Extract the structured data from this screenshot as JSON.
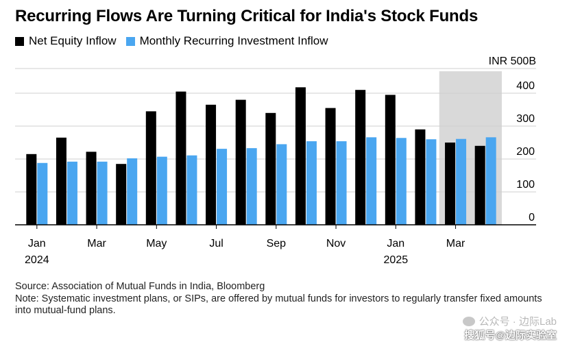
{
  "title": "Recurring Flows Are Turning Critical for India's Stock Funds",
  "legend": [
    {
      "label": "Net Equity Inflow",
      "color": "#000000"
    },
    {
      "label": "Monthly Recurring Investment Inflow",
      "color": "#4aa6f0"
    }
  ],
  "chart_data": {
    "type": "bar",
    "categories": [
      "Jan 2024",
      "Feb 2024",
      "Mar 2024",
      "Apr 2024",
      "May 2024",
      "Jun 2024",
      "Jul 2024",
      "Aug 2024",
      "Sep 2024",
      "Oct 2024",
      "Nov 2024",
      "Dec 2024",
      "Jan 2025",
      "Feb 2025",
      "Mar 2025",
      "Apr 2025"
    ],
    "series": [
      {
        "name": "Net Equity Inflow",
        "color": "#000000",
        "values": [
          215,
          265,
          222,
          185,
          345,
          405,
          365,
          380,
          340,
          418,
          355,
          410,
          395,
          290,
          250,
          240
        ]
      },
      {
        "name": "Monthly Recurring Investment Inflow",
        "color": "#4aa6f0",
        "values": [
          188,
          192,
          192,
          202,
          207,
          211,
          231,
          233,
          245,
          254,
          254,
          266,
          264,
          260,
          261,
          266
        ]
      }
    ],
    "ylim": [
      0,
      500
    ],
    "y_ticks": [
      0,
      100,
      200,
      300,
      400
    ],
    "y_top_label": "INR 500B",
    "x_tick_labels": [
      {
        "index": 0,
        "line1": "Jan",
        "line2": "2024"
      },
      {
        "index": 2,
        "line1": "Mar",
        "line2": ""
      },
      {
        "index": 4,
        "line1": "May",
        "line2": ""
      },
      {
        "index": 6,
        "line1": "Jul",
        "line2": ""
      },
      {
        "index": 8,
        "line1": "Sep",
        "line2": ""
      },
      {
        "index": 10,
        "line1": "Nov",
        "line2": ""
      },
      {
        "index": 12,
        "line1": "Jan",
        "line2": "2025"
      },
      {
        "index": 14,
        "line1": "Mar",
        "line2": ""
      }
    ],
    "shaded_months": [
      "Mar 2025",
      "Apr 2025"
    ],
    "grid": true,
    "legend_position": "top-left"
  },
  "footer": {
    "source": "Source: Association of Mutual Funds in India, Bloomberg",
    "note": "Note: Systematic investment plans, or SIPs, are offered by mutual funds for investors to regularly transfer fixed amounts into mutual-fund plans."
  },
  "watermark": {
    "line1": "公众号 · 边际Lab",
    "line2": "搜狐号@边际实验室"
  }
}
